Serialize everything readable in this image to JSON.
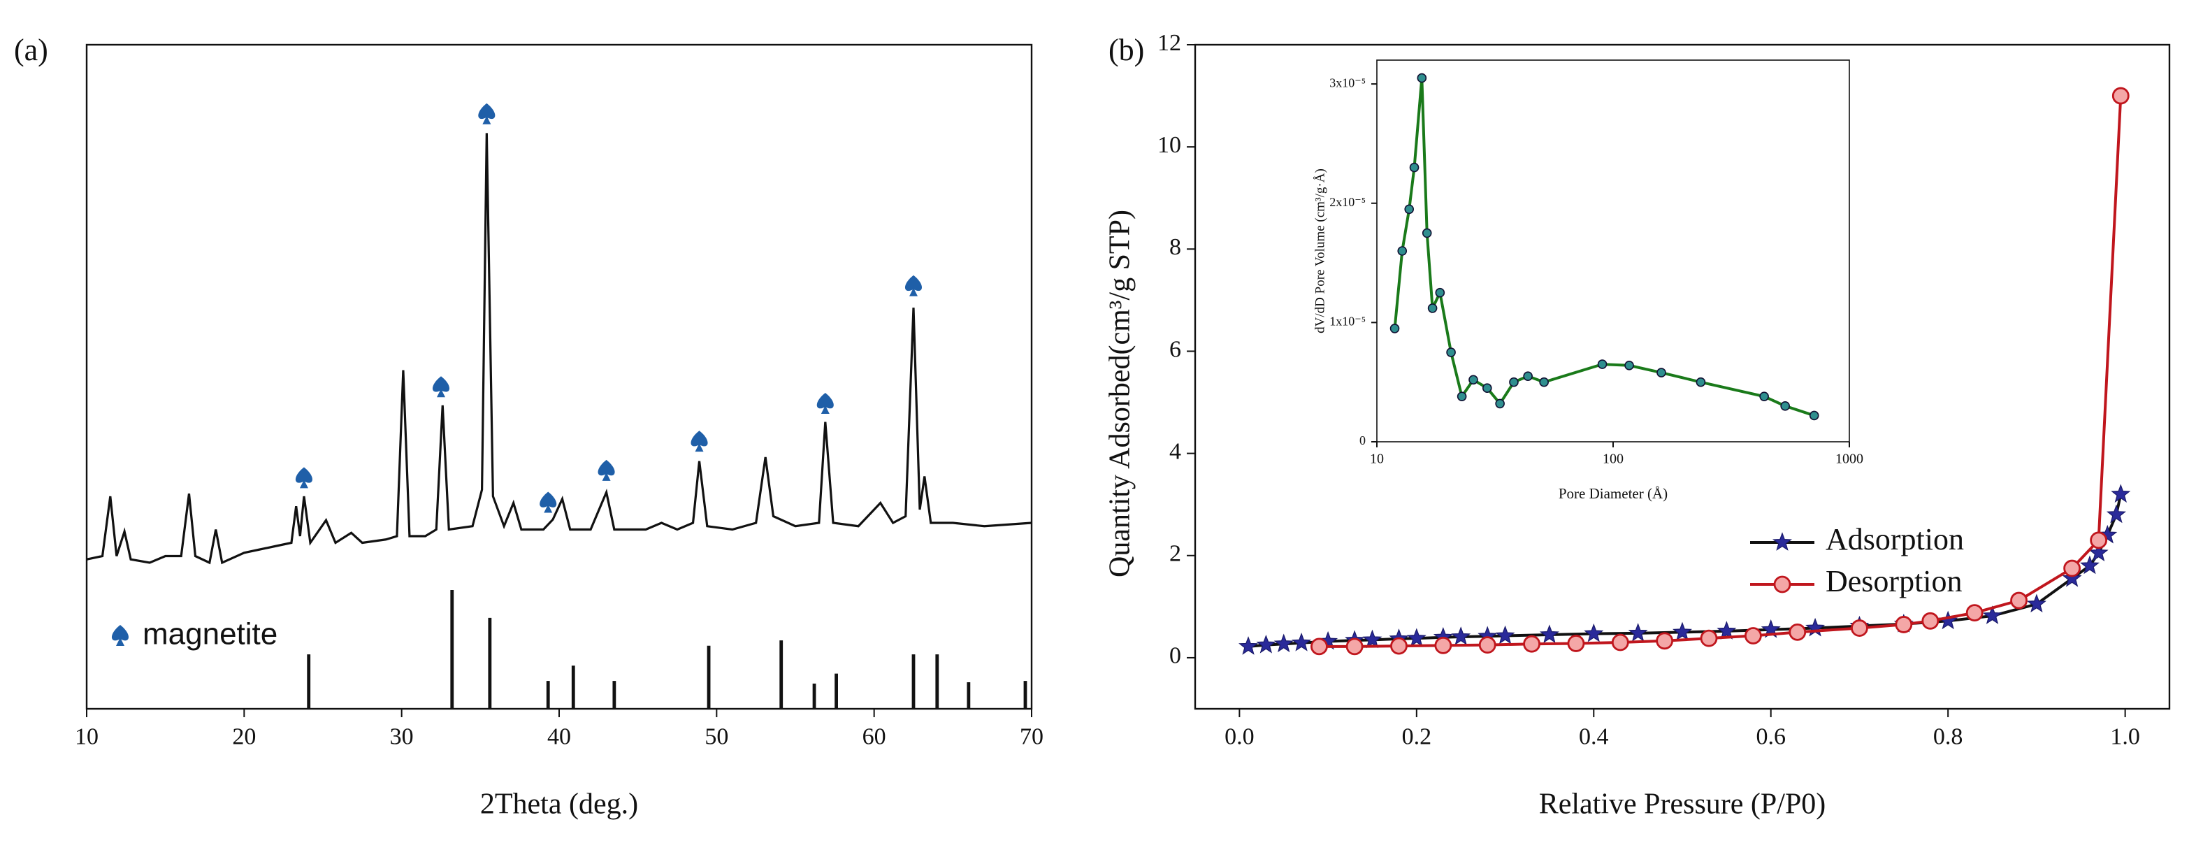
{
  "chart_data": [
    {
      "type": "line",
      "panel_label": "(a)",
      "xlabel": "2Theta (deg.)",
      "xlim": [
        10,
        70
      ],
      "xticks": [
        10,
        20,
        30,
        40,
        50,
        60,
        70
      ],
      "ylim": [
        0,
        100
      ],
      "series": [
        {
          "color": "#111111",
          "x": [
            10,
            11,
            11.5,
            11.9,
            12.4,
            12.8,
            14,
            15,
            16,
            16.5,
            16.9,
            17.8,
            18.2,
            18.6,
            20,
            21,
            22,
            23,
            23.3,
            23.55,
            23.8,
            24.2,
            25.2,
            25.8,
            26.8,
            27.5,
            29,
            29.7,
            30.1,
            30.5,
            31.5,
            32.2,
            32.6,
            33,
            34.5,
            35.1,
            35.4,
            35.8,
            36.5,
            37.1,
            37.6,
            39,
            39.6,
            40.2,
            40.7,
            42,
            43,
            43.5,
            45.5,
            46.5,
            47.5,
            48.5,
            48.9,
            49.4,
            51,
            52.5,
            53.1,
            53.6,
            55,
            56.5,
            56.9,
            57.4,
            59,
            60.4,
            61.2,
            62,
            62.5,
            62.9,
            63.2,
            63.6,
            65,
            67,
            70
          ],
          "values": [
            22.5,
            23,
            32,
            23,
            26.7,
            22.5,
            22,
            23,
            23,
            32.4,
            23,
            22,
            27,
            22,
            23.5,
            24,
            24.5,
            25,
            30.5,
            26,
            32,
            25,
            28.4,
            25,
            26.5,
            25,
            25.5,
            26,
            51,
            26,
            26,
            27,
            45.7,
            27,
            27.5,
            33,
            86.7,
            32,
            27.5,
            31,
            27,
            27,
            28.5,
            31.6,
            27,
            27,
            32.6,
            27,
            27,
            28,
            27,
            28,
            37.3,
            27.5,
            27,
            28,
            37.9,
            29,
            27.5,
            28,
            43.2,
            28,
            27.5,
            31,
            28,
            29,
            60.4,
            30,
            35,
            28,
            28,
            27.5,
            28
          ]
        }
      ],
      "reference": {
        "color": "#111111",
        "x": [
          24.1,
          33.2,
          35.6,
          39.3,
          40.9,
          43.5,
          49.5,
          54.1,
          56.2,
          57.6,
          62.5,
          64,
          66,
          69.6
        ],
        "values": [
          8.2,
          17.9,
          13.7,
          4.2,
          6.5,
          4.2,
          9.5,
          10.3,
          3.8,
          5.3,
          8.2,
          8.2,
          4,
          4.2
        ]
      },
      "markers": {
        "name": "magnetite",
        "color": "#1f5fa8",
        "x": [
          23.8,
          32.5,
          35.4,
          39.3,
          43,
          48.9,
          56.9,
          62.5
        ],
        "values": [
          34.7,
          48.4,
          89.5,
          31,
          35.8,
          40.2,
          45.9,
          63.6
        ]
      }
    },
    {
      "type": "line",
      "panel_label": "(b)",
      "xlabel": "Relative Pressure (P/P0)",
      "ylabel": "Quantity Adsorbed(cm³/g STP)",
      "xlim": [
        -0.05,
        1.05
      ],
      "xticks": [
        {
          "value": 0,
          "label": "0.0"
        },
        0.2,
        0.4,
        0.6,
        0.8,
        {
          "value": 1,
          "label": "1.0"
        }
      ],
      "ylim": [
        -1,
        12
      ],
      "yticks": [
        0,
        2,
        4,
        6,
        8,
        10,
        12
      ],
      "legend": "lower right",
      "series": [
        {
          "name": "Adsorption",
          "color": "#111111",
          "marker": "star",
          "marker_color": "#2a2a9a",
          "x": [
            0.01,
            0.03,
            0.05,
            0.07,
            0.1,
            0.13,
            0.15,
            0.18,
            0.2,
            0.23,
            0.25,
            0.28,
            0.3,
            0.35,
            0.4,
            0.45,
            0.5,
            0.55,
            0.6,
            0.65,
            0.7,
            0.75,
            0.8,
            0.85,
            0.9,
            0.94,
            0.96,
            0.97,
            0.98,
            0.99,
            0.995
          ],
          "values": [
            0.22,
            0.25,
            0.27,
            0.29,
            0.32,
            0.34,
            0.35,
            0.37,
            0.38,
            0.4,
            0.41,
            0.42,
            0.43,
            0.45,
            0.47,
            0.48,
            0.5,
            0.52,
            0.55,
            0.58,
            0.62,
            0.66,
            0.72,
            0.82,
            1.05,
            1.55,
            1.8,
            2.05,
            2.4,
            2.8,
            3.2
          ]
        },
        {
          "name": "Desorption",
          "color": "#c0161d",
          "marker": "circle",
          "marker_color": "#f4a7a7",
          "x": [
            0.09,
            0.13,
            0.18,
            0.23,
            0.28,
            0.33,
            0.38,
            0.43,
            0.48,
            0.53,
            0.58,
            0.63,
            0.7,
            0.75,
            0.78,
            0.83,
            0.88,
            0.94,
            0.97,
            0.995
          ],
          "values": [
            0.22,
            0.22,
            0.23,
            0.24,
            0.25,
            0.27,
            0.28,
            0.3,
            0.33,
            0.38,
            0.43,
            0.5,
            0.58,
            0.65,
            0.72,
            0.88,
            1.12,
            1.75,
            2.3,
            11.0
          ]
        }
      ]
    },
    {
      "type": "line",
      "xlabel": "Pore Diameter (Å)",
      "ylabel": "dV/dD Pore Volume (cm³/g·Å)",
      "xscale": "log",
      "xlim": [
        10,
        1000
      ],
      "xticks": [
        10,
        100,
        1000
      ],
      "ylim": [
        0,
        3.2e-05
      ],
      "yticks": [
        0,
        {
          "value": 1e-05,
          "label": "1x10⁻⁵"
        },
        {
          "value": 2e-05,
          "label": "2x10⁻⁵"
        },
        {
          "value": 3e-05,
          "label": "3x10⁻⁵"
        }
      ],
      "series": [
        {
          "color": "#1a7a1a",
          "marker": "circle",
          "marker_color": "#2f8f8f",
          "x": [
            11.9,
            12.8,
            13.7,
            14.4,
            15.5,
            16.3,
            17.2,
            18.5,
            20.6,
            22.9,
            25.6,
            29.3,
            33.2,
            38,
            43.6,
            51,
            90,
            117,
            160,
            235,
            436,
            535,
            710
          ],
          "values": [
            9.5e-06,
            1.6e-05,
            1.95e-05,
            2.3e-05,
            3.05e-05,
            1.75e-05,
            1.12e-05,
            1.25e-05,
            7.5e-06,
            3.8e-06,
            5.2e-06,
            4.5e-06,
            3.2e-06,
            5e-06,
            5.5e-06,
            5e-06,
            6.5e-06,
            6.4e-06,
            5.8e-06,
            5e-06,
            3.8e-06,
            3e-06,
            2.2e-06
          ]
        }
      ]
    }
  ]
}
